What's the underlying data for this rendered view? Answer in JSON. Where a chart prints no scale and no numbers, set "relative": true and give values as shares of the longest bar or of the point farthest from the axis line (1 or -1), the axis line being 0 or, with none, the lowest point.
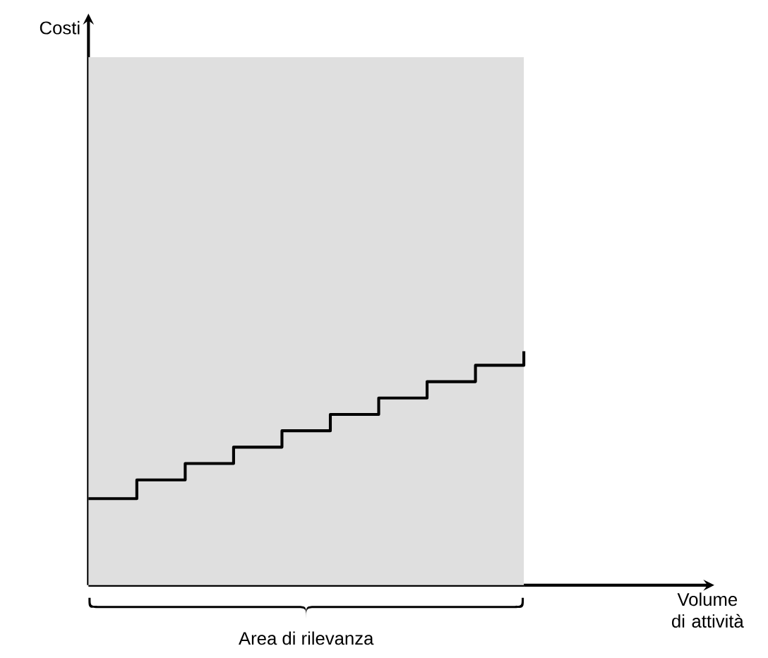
{
  "chart_data": {
    "type": "step",
    "relative": true,
    "categories": [
      null,
      null,
      null,
      null,
      null,
      null,
      null,
      null,
      null,
      null
    ],
    "series": [
      {
        "color": "#000000",
        "values": [
          0.37,
          0.45,
          0.52,
          0.59,
          0.66,
          0.73,
          0.8,
          0.87,
          0.94,
          1.0
        ]
      }
    ],
    "annotations": [
      "Costi",
      "Volume di attività",
      "Area di rilevanza"
    ]
  }
}
